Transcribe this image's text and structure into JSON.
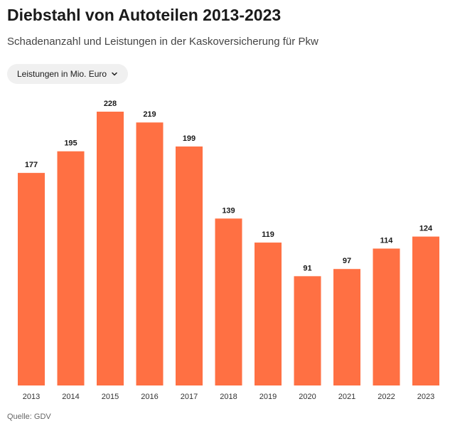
{
  "title": "Diebstahl von Autoteilen 2013-2023",
  "subtitle": "Schadenanzahl und Leistungen in der Kaskoversicherung für Pkw",
  "dropdown": {
    "selected": "Leistungen in Mio. Euro",
    "icon": "chevron-down-icon"
  },
  "source": "Quelle: GDV",
  "colors": {
    "bar": "#ff7043",
    "label": "#1a1a1a",
    "tick": "#333333"
  },
  "chart_data": {
    "type": "bar",
    "title": "Diebstahl von Autoteilen 2013-2023",
    "xlabel": "",
    "ylabel": "Leistungen in Mio. Euro",
    "categories": [
      "2013",
      "2014",
      "2015",
      "2016",
      "2017",
      "2018",
      "2019",
      "2020",
      "2021",
      "2022",
      "2023"
    ],
    "values": [
      177,
      195,
      228,
      219,
      199,
      139,
      119,
      91,
      97,
      114,
      124
    ],
    "ylim": [
      0,
      228
    ],
    "grid": false
  }
}
